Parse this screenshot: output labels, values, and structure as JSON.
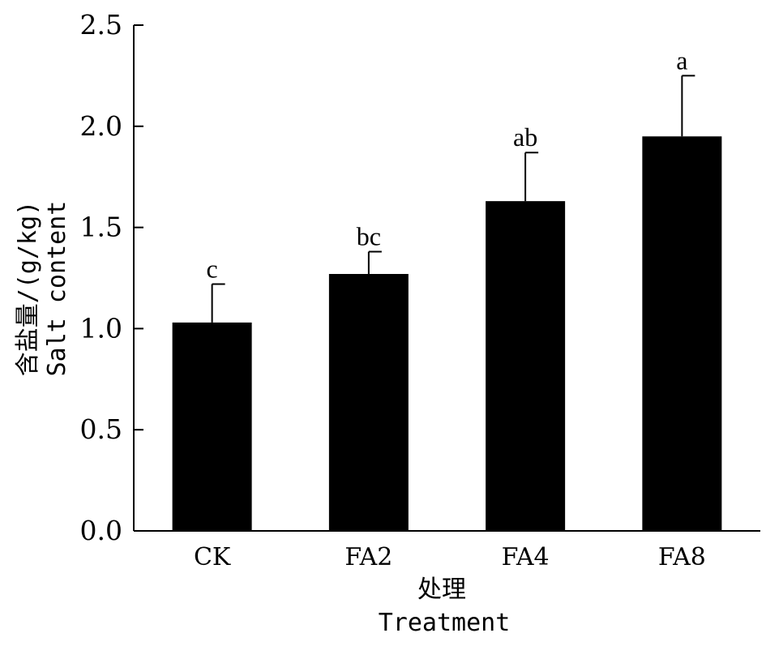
{
  "chart_data": {
    "type": "bar",
    "categories": [
      "CK",
      "FA2",
      "FA4",
      "FA8"
    ],
    "values": [
      1.03,
      1.27,
      1.63,
      1.95
    ],
    "errors": [
      0.19,
      0.11,
      0.24,
      0.3
    ],
    "significance": [
      "c",
      "bc",
      "ab",
      "a"
    ],
    "ylim": [
      0,
      2.5
    ],
    "yticks": [
      0,
      0.5,
      1.0,
      1.5,
      2.0,
      2.5
    ],
    "ytick_labels": [
      "0.0",
      "0.5",
      "1.0",
      "1.5",
      "2.0",
      "2.5"
    ],
    "xlabel_line1": "处理",
    "xlabel_line2": "Treatment",
    "ylabel_line1": "含盐量/(g/kg)",
    "ylabel_line2": "Salt content",
    "bar_color": "#000000",
    "grid": false
  }
}
